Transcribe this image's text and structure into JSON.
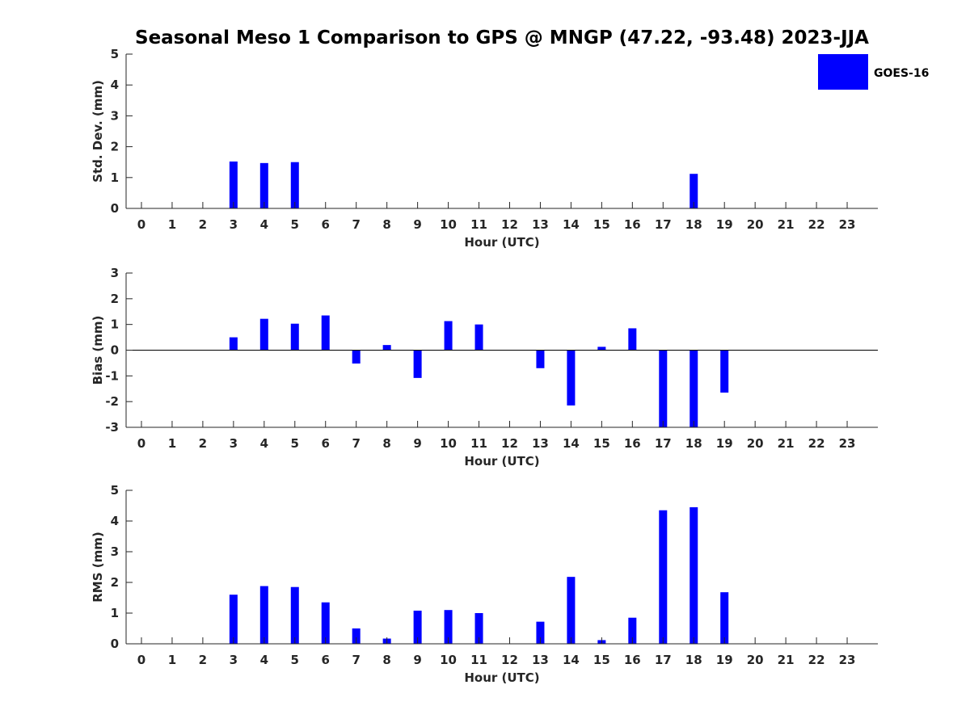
{
  "title": "Seasonal Meso 1 Comparison to GPS @ MNGP (47.22, -93.48) 2023-JJA",
  "colors": {
    "bar": "#0000ff",
    "axis": "#262626",
    "background": "#ffffff"
  },
  "legend": {
    "label": "GOES-16",
    "placement": "top-right"
  },
  "chart_data": [
    {
      "type": "bar",
      "categories": [
        "0",
        "1",
        "2",
        "3",
        "4",
        "5",
        "6",
        "7",
        "8",
        "9",
        "10",
        "11",
        "12",
        "13",
        "14",
        "15",
        "16",
        "17",
        "18",
        "19",
        "20",
        "21",
        "22",
        "23"
      ],
      "series": [
        {
          "name": "GOES-16",
          "values": [
            null,
            null,
            null,
            1.52,
            1.47,
            1.5,
            null,
            null,
            null,
            null,
            null,
            null,
            null,
            null,
            null,
            null,
            null,
            null,
            1.12,
            null,
            null,
            null,
            null,
            null
          ]
        }
      ],
      "xlabel": "Hour (UTC)",
      "ylabel": "Std. Dev. (mm)",
      "ylim": [
        0,
        5
      ],
      "yticks": [
        "0",
        "1",
        "2",
        "3",
        "4",
        "5"
      ]
    },
    {
      "type": "bar",
      "categories": [
        "0",
        "1",
        "2",
        "3",
        "4",
        "5",
        "6",
        "7",
        "8",
        "9",
        "10",
        "11",
        "12",
        "13",
        "14",
        "15",
        "16",
        "17",
        "18",
        "19",
        "20",
        "21",
        "22",
        "23"
      ],
      "series": [
        {
          "name": "GOES-16",
          "values": [
            null,
            null,
            null,
            0.5,
            1.22,
            1.03,
            1.35,
            -0.52,
            0.2,
            -1.08,
            1.13,
            1.0,
            null,
            -0.7,
            -2.15,
            0.13,
            0.85,
            -3.0,
            -3.0,
            -1.65,
            null,
            null,
            null,
            null
          ]
        }
      ],
      "xlabel": "Hour (UTC)",
      "ylabel": "Bias (mm)",
      "ylim": [
        -3,
        3
      ],
      "yticks": [
        "-3",
        "-2",
        "-1",
        "0",
        "1",
        "2",
        "3"
      ]
    },
    {
      "type": "bar",
      "categories": [
        "0",
        "1",
        "2",
        "3",
        "4",
        "5",
        "6",
        "7",
        "8",
        "9",
        "10",
        "11",
        "12",
        "13",
        "14",
        "15",
        "16",
        "17",
        "18",
        "19",
        "20",
        "21",
        "22",
        "23"
      ],
      "series": [
        {
          "name": "GOES-16",
          "values": [
            null,
            null,
            null,
            1.6,
            1.88,
            1.85,
            1.35,
            0.5,
            0.17,
            1.08,
            1.1,
            1.0,
            null,
            0.72,
            2.18,
            0.12,
            0.85,
            4.35,
            4.45,
            1.68,
            null,
            null,
            null,
            null
          ]
        }
      ],
      "xlabel": "Hour (UTC)",
      "ylabel": "RMS (mm)",
      "ylim": [
        0,
        5
      ],
      "yticks": [
        "0",
        "1",
        "2",
        "3",
        "4",
        "5"
      ]
    }
  ]
}
